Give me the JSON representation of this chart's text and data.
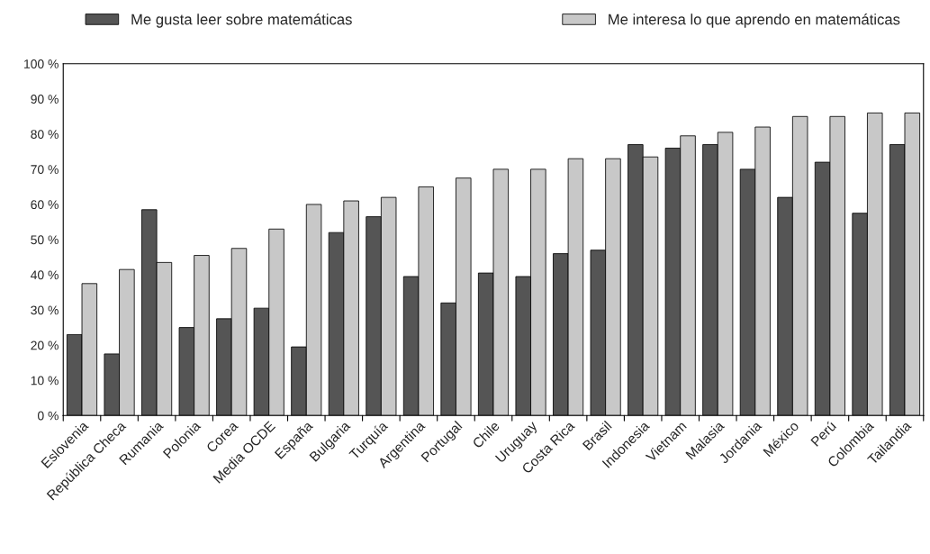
{
  "chart_data": {
    "type": "bar",
    "categories": [
      "Eslovenia",
      "República Checa",
      "Rumania",
      "Polonia",
      "Corea",
      "Media OCDE",
      "España",
      "Bulgaria",
      "Turquía",
      "Argentina",
      "Portugal",
      "Chile",
      "Uruguay",
      "Costa Rica",
      "Brasil",
      "Indonesia",
      "Vietnam",
      "Malasia",
      "Jordania",
      "México",
      "Perú",
      "Colombia",
      "Tailandia"
    ],
    "series": [
      {
        "name": "Me gusta leer sobre matemáticas",
        "color": "#555555",
        "values": [
          23,
          17.5,
          58.5,
          25,
          27.5,
          30.5,
          19.5,
          52,
          56.5,
          39.5,
          32,
          40.5,
          39.5,
          46,
          47,
          77,
          76,
          77,
          70,
          62,
          72,
          57.5,
          77
        ]
      },
      {
        "name": "Me interesa lo que aprendo en matemáticas",
        "color": "#c8c8c8",
        "values": [
          37.5,
          41.5,
          43.5,
          45.5,
          47.5,
          53,
          60,
          61,
          62,
          65,
          67.5,
          70,
          70,
          73,
          73,
          73.5,
          79.5,
          80.5,
          82,
          85,
          85,
          86,
          86
        ]
      }
    ],
    "ylim": [
      0,
      100
    ],
    "yticks": [
      {
        "value": 0,
        "label": "0 %"
      },
      {
        "value": 10,
        "label": "10 %"
      },
      {
        "value": 20,
        "label": "20 %"
      },
      {
        "value": 30,
        "label": "30 %"
      },
      {
        "value": 40,
        "label": "40 %"
      },
      {
        "value": 50,
        "label": "50 %"
      },
      {
        "value": 60,
        "label": "60 %"
      },
      {
        "value": 70,
        "label": "70 %"
      },
      {
        "value": 80,
        "label": "80 %"
      },
      {
        "value": 90,
        "label": "90 %"
      },
      {
        "value": 100,
        "label": "100 %"
      }
    ],
    "legend": "top",
    "grid": false
  }
}
